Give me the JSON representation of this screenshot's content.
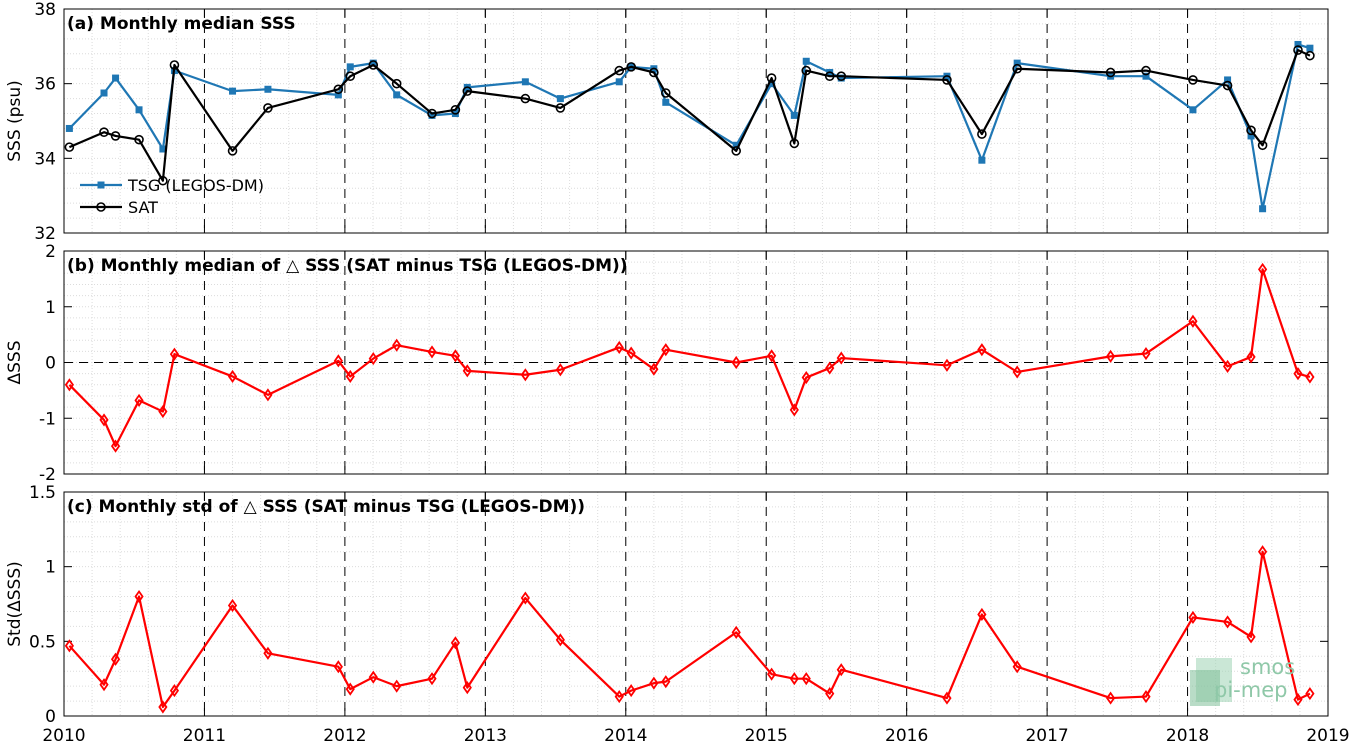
{
  "chart_data": [
    {
      "type": "line",
      "title": "(a) Monthly median SSS",
      "xlabel": "",
      "ylabel": "SSS (psu)",
      "xlim": [
        "2010-01-01",
        "2019-01-01"
      ],
      "ylim": [
        32,
        38
      ],
      "yticks": [
        32,
        34,
        36,
        38
      ],
      "grid": "on",
      "legend_position": "lower-left",
      "x_ticks": [
        "2010",
        "2011",
        "2012",
        "2013",
        "2014",
        "2015",
        "2016",
        "2017",
        "2018",
        "2019"
      ],
      "series": [
        {
          "name": "TSG (LEGOS-DM)",
          "color": "#1f77b4",
          "marker": "square",
          "x": [
            "2010-01-15",
            "2010-04-15",
            "2010-05-15",
            "2010-07-15",
            "2010-09-15",
            "2010-10-15",
            "2011-03-15",
            "2011-06-15",
            "2011-12-15",
            "2012-01-15",
            "2012-03-15",
            "2012-05-15",
            "2012-08-15",
            "2012-10-15",
            "2012-11-15",
            "2013-04-15",
            "2013-07-15",
            "2013-12-15",
            "2014-01-15",
            "2014-03-15",
            "2014-04-15",
            "2014-10-15",
            "2015-01-15",
            "2015-03-15",
            "2015-04-15",
            "2015-06-15",
            "2015-07-15",
            "2016-04-15",
            "2016-07-15",
            "2016-10-15",
            "2017-06-15",
            "2017-09-15",
            "2018-01-15",
            "2018-04-15",
            "2018-06-15",
            "2018-07-15",
            "2018-10-15",
            "2018-11-15"
          ],
          "y": [
            34.8,
            35.75,
            36.15,
            35.3,
            34.25,
            36.35,
            35.8,
            35.85,
            35.7,
            36.45,
            36.55,
            35.7,
            35.15,
            35.2,
            35.9,
            36.05,
            35.6,
            36.05,
            36.45,
            36.4,
            35.5,
            34.35,
            36.0,
            35.15,
            36.6,
            36.3,
            36.15,
            36.2,
            33.95,
            36.55,
            36.2,
            36.2,
            35.3,
            36.1,
            34.6,
            32.65,
            37.05,
            36.95
          ]
        },
        {
          "name": "SAT",
          "color": "#000000",
          "marker": "circle",
          "x": [
            "2010-01-15",
            "2010-04-15",
            "2010-05-15",
            "2010-07-15",
            "2010-09-15",
            "2010-10-15",
            "2011-03-15",
            "2011-06-15",
            "2011-12-15",
            "2012-01-15",
            "2012-03-15",
            "2012-05-15",
            "2012-08-15",
            "2012-10-15",
            "2012-11-15",
            "2013-04-15",
            "2013-07-15",
            "2013-12-15",
            "2014-01-15",
            "2014-03-15",
            "2014-04-15",
            "2014-10-15",
            "2015-01-15",
            "2015-03-15",
            "2015-04-15",
            "2015-06-15",
            "2015-07-15",
            "2016-04-15",
            "2016-07-15",
            "2016-10-15",
            "2017-06-15",
            "2017-09-15",
            "2018-01-15",
            "2018-04-15",
            "2018-06-15",
            "2018-07-15",
            "2018-10-15",
            "2018-11-15"
          ],
          "y": [
            34.3,
            34.7,
            34.6,
            34.5,
            33.4,
            36.5,
            34.2,
            35.35,
            35.85,
            36.2,
            36.5,
            36.0,
            35.2,
            35.3,
            35.8,
            35.6,
            35.35,
            36.35,
            36.45,
            36.3,
            35.75,
            34.2,
            36.15,
            34.4,
            36.35,
            36.2,
            36.2,
            36.1,
            34.65,
            36.4,
            36.3,
            36.35,
            36.1,
            35.95,
            34.75,
            34.35,
            36.9,
            36.75
          ]
        }
      ]
    },
    {
      "type": "line",
      "title": "(b) Monthly median of △ SSS (SAT minus TSG (LEGOS-DM))",
      "xlabel": "",
      "ylabel": "ΔSSS",
      "xlim": [
        "2010-01-01",
        "2019-01-01"
      ],
      "ylim": [
        -2,
        2
      ],
      "yticks": [
        -2,
        -1,
        0,
        1,
        2
      ],
      "grid": "on",
      "zero_line": "dashed",
      "series": [
        {
          "color": "#ff0000",
          "marker": "diamond",
          "x": [
            "2010-01-15",
            "2010-04-15",
            "2010-05-15",
            "2010-07-15",
            "2010-09-15",
            "2010-10-15",
            "2011-03-15",
            "2011-06-15",
            "2011-12-15",
            "2012-01-15",
            "2012-03-15",
            "2012-05-15",
            "2012-08-15",
            "2012-10-15",
            "2012-11-15",
            "2013-04-15",
            "2013-07-15",
            "2013-12-15",
            "2014-01-15",
            "2014-03-15",
            "2014-04-15",
            "2014-10-15",
            "2015-01-15",
            "2015-03-15",
            "2015-04-15",
            "2015-06-15",
            "2015-07-15",
            "2016-04-15",
            "2016-07-15",
            "2016-10-15",
            "2017-06-15",
            "2017-09-15",
            "2018-01-15",
            "2018-04-15",
            "2018-06-15",
            "2018-07-15",
            "2018-10-15",
            "2018-11-15"
          ],
          "y": [
            -0.4,
            -1.03,
            -1.5,
            -0.68,
            -0.88,
            0.15,
            -0.25,
            -0.58,
            0.03,
            -0.25,
            0.07,
            0.31,
            0.19,
            0.12,
            -0.15,
            -0.22,
            -0.13,
            0.27,
            0.17,
            -0.12,
            0.23,
            0.0,
            0.12,
            -0.85,
            -0.27,
            -0.1,
            0.08,
            -0.05,
            0.23,
            -0.17,
            0.11,
            0.16,
            0.74,
            -0.07,
            0.1,
            1.67,
            -0.2,
            -0.26
          ]
        }
      ]
    },
    {
      "type": "line",
      "title": "(c) Monthly std of △ SSS (SAT minus TSG (LEGOS-DM))",
      "xlabel": "",
      "ylabel": "Std(ΔSSS)",
      "xlim": [
        "2010-01-01",
        "2019-01-01"
      ],
      "ylim": [
        0,
        1.5
      ],
      "yticks": [
        0,
        0.5,
        1,
        1.5
      ],
      "grid": "on",
      "series": [
        {
          "color": "#ff0000",
          "marker": "diamond",
          "x": [
            "2010-01-15",
            "2010-04-15",
            "2010-05-15",
            "2010-07-15",
            "2010-09-15",
            "2010-10-15",
            "2011-03-15",
            "2011-06-15",
            "2011-12-15",
            "2012-01-15",
            "2012-03-15",
            "2012-05-15",
            "2012-08-15",
            "2012-10-15",
            "2012-11-15",
            "2013-04-15",
            "2013-07-15",
            "2013-12-15",
            "2014-01-15",
            "2014-03-15",
            "2014-04-15",
            "2014-10-15",
            "2015-01-15",
            "2015-03-15",
            "2015-04-15",
            "2015-06-15",
            "2015-07-15",
            "2016-04-15",
            "2016-07-15",
            "2016-10-15",
            "2017-06-15",
            "2017-09-15",
            "2018-01-15",
            "2018-04-15",
            "2018-06-15",
            "2018-07-15",
            "2018-10-15",
            "2018-11-15"
          ],
          "y": [
            0.47,
            0.21,
            0.38,
            0.8,
            0.06,
            0.17,
            0.74,
            0.42,
            0.33,
            0.18,
            0.26,
            0.2,
            0.25,
            0.49,
            0.19,
            0.79,
            0.51,
            0.13,
            0.17,
            0.22,
            0.23,
            0.56,
            0.28,
            0.25,
            0.25,
            0.15,
            0.31,
            0.12,
            0.68,
            0.33,
            0.12,
            0.13,
            0.66,
            0.63,
            0.53,
            1.1,
            0.11,
            0.15
          ]
        }
      ]
    }
  ],
  "logo": {
    "line1": "smos",
    "line2": "pi-mep"
  }
}
